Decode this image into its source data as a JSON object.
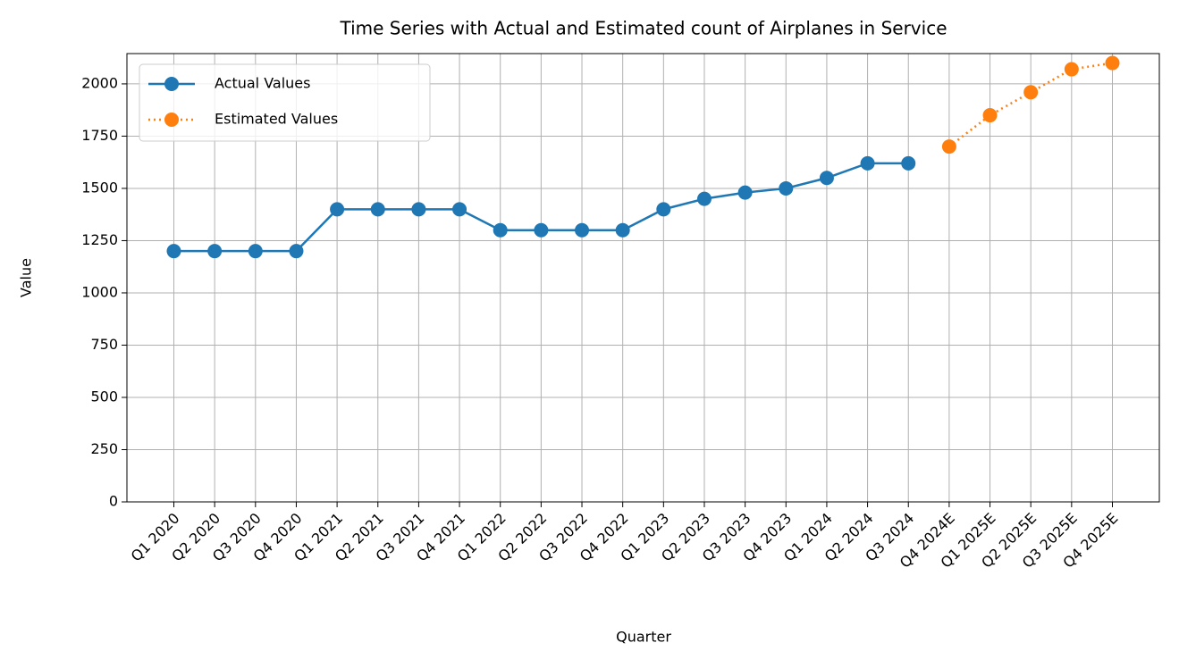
{
  "chart_data": {
    "type": "line",
    "title": "Time Series with Actual and Estimated count of Airplanes in Service",
    "x_label": "Quarter",
    "y_label": "Value",
    "categories": [
      "Q1 2020",
      "Q2 2020",
      "Q3 2020",
      "Q4 2020",
      "Q1 2021",
      "Q2 2021",
      "Q3 2021",
      "Q4 2021",
      "Q1 2022",
      "Q2 2022",
      "Q3 2022",
      "Q4 2022",
      "Q1 2023",
      "Q2 2023",
      "Q3 2023",
      "Q4 2023",
      "Q1 2024",
      "Q2 2024",
      "Q3 2024",
      "Q4 2024E",
      "Q1 2025E",
      "Q2 2025E",
      "Q3 2025E",
      "Q4 2025E"
    ],
    "series": [
      {
        "name": "Actual Values",
        "color": "#1f77b4",
        "linestyle": "solid",
        "values": [
          1200,
          1200,
          1200,
          1200,
          1400,
          1400,
          1400,
          1400,
          1300,
          1300,
          1300,
          1300,
          1400,
          1450,
          1480,
          1500,
          1550,
          1620,
          1620,
          null,
          null,
          null,
          null,
          null
        ]
      },
      {
        "name": "Estimated Values",
        "color": "#ff7f0e",
        "linestyle": "dotted",
        "values": [
          null,
          null,
          null,
          null,
          null,
          null,
          null,
          null,
          null,
          null,
          null,
          null,
          null,
          null,
          null,
          null,
          null,
          null,
          null,
          1700,
          1850,
          1960,
          2070,
          2100
        ]
      }
    ],
    "ylim": [
      0,
      2145
    ],
    "yticks": [
      0,
      250,
      500,
      750,
      1000,
      1250,
      1500,
      1750,
      2000
    ],
    "grid": true,
    "legend": "upper left"
  }
}
